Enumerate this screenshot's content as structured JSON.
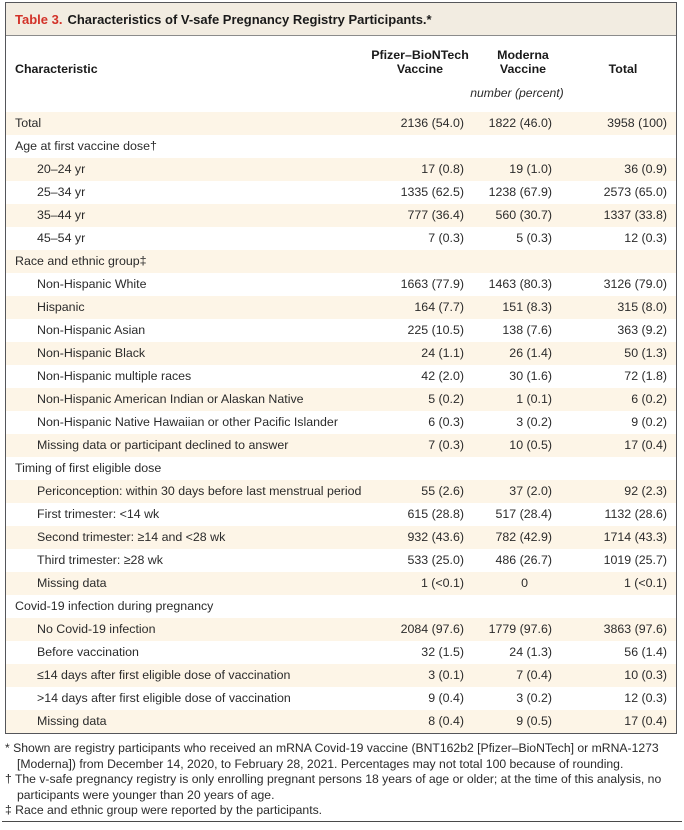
{
  "title_bar": {
    "label": "Table 3.",
    "title": "Characteristics of V-safe Pregnancy Registry Participants.*"
  },
  "columns": {
    "characteristic": "Characteristic",
    "pfizer_l1": "Pfizer–BioNTech",
    "pfizer_l2": "Vaccine",
    "moderna_l1": "Moderna",
    "moderna_l2": "Vaccine",
    "total": "Total"
  },
  "unit_note": "number (percent)",
  "rows": [
    {
      "label": "Total",
      "indent": false,
      "values": [
        "2136 (54.0)",
        "1822 (46.0)",
        "3958 (100)"
      ]
    },
    {
      "label": "Age at first vaccine dose†",
      "indent": false,
      "values": [
        "",
        "",
        ""
      ]
    },
    {
      "label": "20–24 yr",
      "indent": true,
      "values": [
        "17 (0.8)",
        "19 (1.0)",
        "36 (0.9)"
      ]
    },
    {
      "label": "25–34 yr",
      "indent": true,
      "values": [
        "1335 (62.5)",
        "1238 (67.9)",
        "2573 (65.0)"
      ]
    },
    {
      "label": "35–44 yr",
      "indent": true,
      "values": [
        "777 (36.4)",
        "560 (30.7)",
        "1337 (33.8)"
      ]
    },
    {
      "label": "45–54 yr",
      "indent": true,
      "values": [
        "7 (0.3)",
        "5 (0.3)",
        "12 (0.3)"
      ]
    },
    {
      "label": "Race and ethnic group‡",
      "indent": false,
      "values": [
        "",
        "",
        ""
      ]
    },
    {
      "label": "Non-Hispanic White",
      "indent": true,
      "values": [
        "1663 (77.9)",
        "1463 (80.3)",
        "3126 (79.0)"
      ]
    },
    {
      "label": "Hispanic",
      "indent": true,
      "values": [
        "164 (7.7)",
        "151 (8.3)",
        "315 (8.0)"
      ]
    },
    {
      "label": "Non-Hispanic Asian",
      "indent": true,
      "values": [
        "225 (10.5)",
        "138 (7.6)",
        "363 (9.2)"
      ]
    },
    {
      "label": "Non-Hispanic Black",
      "indent": true,
      "values": [
        "24 (1.1)",
        "26 (1.4)",
        "50 (1.3)"
      ]
    },
    {
      "label": "Non-Hispanic multiple races",
      "indent": true,
      "values": [
        "42 (2.0)",
        "30 (1.6)",
        "72 (1.8)"
      ]
    },
    {
      "label": "Non-Hispanic American Indian or Alaskan Native",
      "indent": true,
      "values": [
        "5 (0.2)",
        "1 (0.1)",
        "6 (0.2)"
      ]
    },
    {
      "label": "Non-Hispanic Native Hawaiian or other Pacific Islander",
      "indent": true,
      "values": [
        "6 (0.3)",
        "3 (0.2)",
        "9 (0.2)"
      ]
    },
    {
      "label": "Missing data or participant declined to answer",
      "indent": true,
      "values": [
        "7 (0.3)",
        "10 (0.5)",
        "17 (0.4)"
      ]
    },
    {
      "label": "Timing of first eligible dose",
      "indent": false,
      "values": [
        "",
        "",
        ""
      ]
    },
    {
      "label": "Periconception: within 30 days before last menstrual period",
      "indent": true,
      "values": [
        "55 (2.6)",
        "37 (2.0)",
        "92 (2.3)"
      ]
    },
    {
      "label": "First trimester: <14 wk",
      "indent": true,
      "values": [
        "615 (28.8)",
        "517 (28.4)",
        "1132 (28.6)"
      ]
    },
    {
      "label": "Second trimester: ≥14 and <28 wk",
      "indent": true,
      "values": [
        "932 (43.6)",
        "782 (42.9)",
        "1714 (43.3)"
      ]
    },
    {
      "label": "Third trimester: ≥28 wk",
      "indent": true,
      "values": [
        "533 (25.0)",
        "486 (26.7)",
        "1019 (25.7)"
      ]
    },
    {
      "label": "Missing data",
      "indent": true,
      "values": [
        "1 (<0.1)",
        "0",
        "1 (<0.1)"
      ]
    },
    {
      "label": "Covid-19 infection during pregnancy",
      "indent": false,
      "values": [
        "",
        "",
        ""
      ]
    },
    {
      "label": "No Covid-19 infection",
      "indent": true,
      "values": [
        "2084 (97.6)",
        "1779 (97.6)",
        "3863 (97.6)"
      ]
    },
    {
      "label": "Before vaccination",
      "indent": true,
      "values": [
        "32 (1.5)",
        "24 (1.3)",
        "56 (1.4)"
      ]
    },
    {
      "label": "≤14 days after first eligible dose of vaccination",
      "indent": true,
      "values": [
        "3 (0.1)",
        "7 (0.4)",
        "10 (0.3)"
      ]
    },
    {
      "label": ">14 days after first eligible dose of vaccination",
      "indent": true,
      "values": [
        "9 (0.4)",
        "3 (0.2)",
        "12 (0.3)"
      ]
    },
    {
      "label": "Missing data",
      "indent": true,
      "values": [
        "8 (0.4)",
        "9 (0.5)",
        "17 (0.4)"
      ]
    }
  ],
  "footnotes": [
    {
      "marker": "*",
      "text": "Shown are registry participants who received an mRNA Covid-19 vaccine (BNT162b2 [Pfizer–BioNTech] or mRNA-1273 [Moderna]) from December 14, 2020, to February 28, 2021. Percentages may not total 100 because of rounding."
    },
    {
      "marker": "†",
      "text": "The v-safe pregnancy registry is only enrolling pregnant persons 18 years of age or older; at the time of this analysis, no participants were younger than 20 years of age."
    },
    {
      "marker": "‡",
      "text": "Race and ethnic group were reported by the participants."
    }
  ],
  "colors": {
    "accent_red": "#d23229",
    "shaded_row": "#fdf5e7",
    "title_bar_bg": "#f2ece1"
  }
}
